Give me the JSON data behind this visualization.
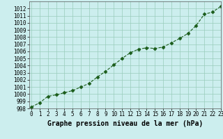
{
  "x": [
    0,
    1,
    2,
    3,
    4,
    5,
    6,
    7,
    8,
    9,
    10,
    11,
    12,
    13,
    14,
    15,
    16,
    17,
    18,
    19,
    20,
    21,
    22,
    23
  ],
  "y": [
    998.2,
    998.8,
    999.7,
    999.9,
    1000.2,
    1000.5,
    1001.0,
    1001.5,
    1002.4,
    1003.2,
    1004.1,
    1005.0,
    1005.8,
    1006.3,
    1006.5,
    1006.4,
    1006.6,
    1007.2,
    1007.8,
    1008.5,
    1009.6,
    1011.2,
    1011.5,
    1012.3
  ],
  "line_color": "#1a5c1a",
  "marker": "D",
  "marker_size": 2.5,
  "bg_color": "#cceeee",
  "grid_color": "#99ccbb",
  "title": "Graphe pression niveau de la mer (hPa)",
  "ylim": [
    998,
    1013
  ],
  "xlim": [
    -0.3,
    23
  ],
  "yticks": [
    998,
    999,
    1000,
    1001,
    1002,
    1003,
    1004,
    1005,
    1006,
    1007,
    1008,
    1009,
    1010,
    1011,
    1012
  ],
  "xticks": [
    0,
    1,
    2,
    3,
    4,
    5,
    6,
    7,
    8,
    9,
    10,
    11,
    12,
    13,
    14,
    15,
    16,
    17,
    18,
    19,
    20,
    21,
    22,
    23
  ],
  "title_fontsize": 7.0,
  "tick_fontsize": 5.5
}
